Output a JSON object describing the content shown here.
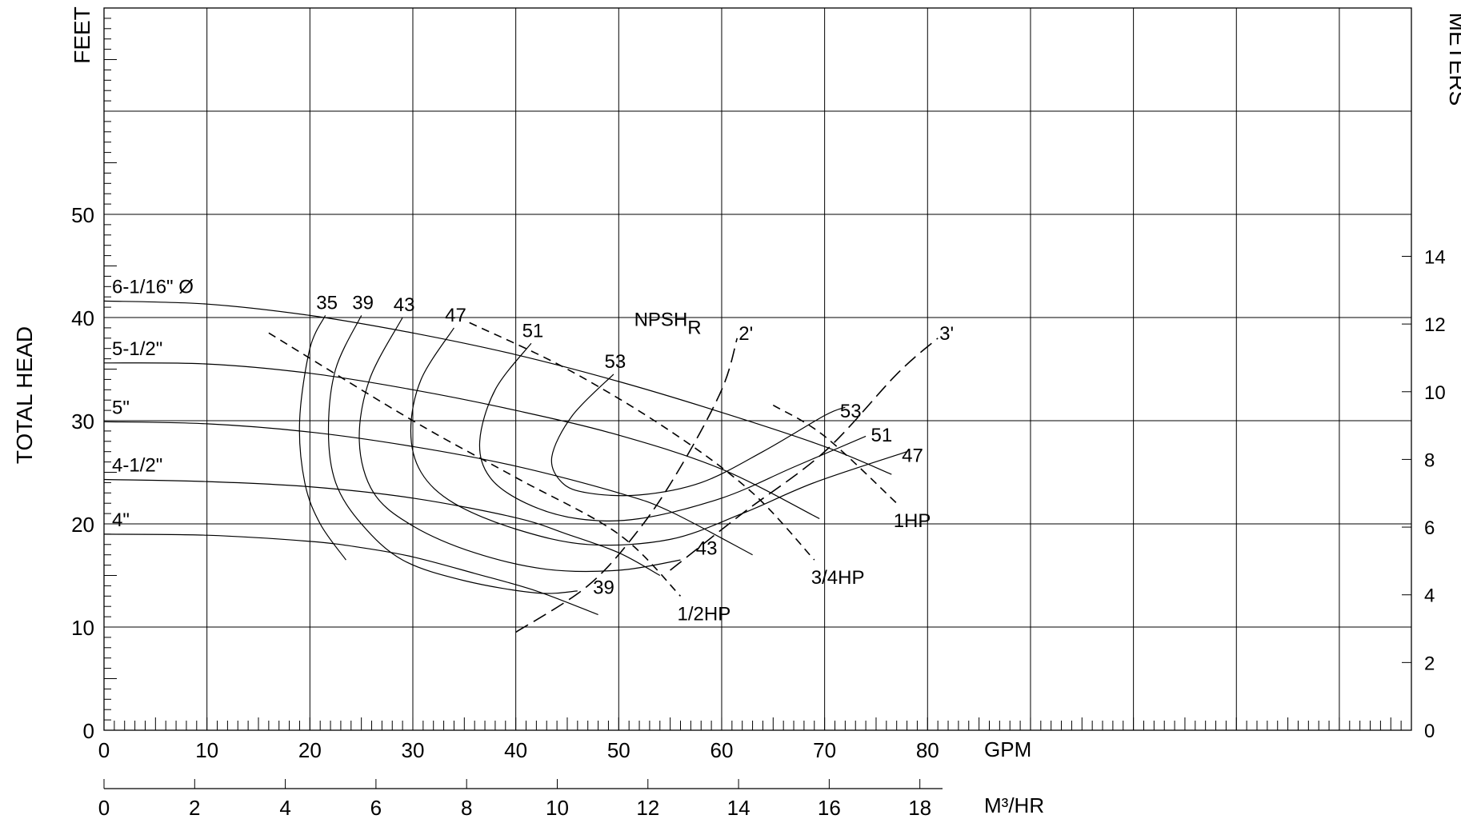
{
  "chart_data": {
    "type": "line",
    "title": "",
    "axes": {
      "left_unit": "FEET",
      "left_title": "TOTAL HEAD",
      "right_unit": "METERS",
      "bottom_unit": "GPM",
      "bottom2_unit": "M³/HR",
      "x_range": [
        0,
        127
      ],
      "y_range": [
        0,
        70
      ],
      "y_ticks": [
        "0",
        "10",
        "20",
        "30",
        "40",
        "50"
      ],
      "x_ticks": [
        "0",
        "10",
        "20",
        "30",
        "40",
        "50",
        "60",
        "70",
        "80"
      ],
      "x2_ticks": [
        "0",
        "2",
        "4",
        "6",
        "8",
        "10",
        "12",
        "14",
        "16",
        "18"
      ],
      "y2_ticks": [
        "0",
        "2",
        "4",
        "6",
        "8",
        "10",
        "12",
        "14"
      ],
      "grid": true
    },
    "impeller_curves": [
      {
        "label": "6-1/16\" Ø",
        "points": [
          [
            0,
            41.6
          ],
          [
            10,
            41.3
          ],
          [
            20,
            40.2
          ],
          [
            30,
            38.5
          ],
          [
            40,
            36.4
          ],
          [
            50,
            33.8
          ],
          [
            60,
            30.8
          ],
          [
            70,
            27.5
          ],
          [
            76.5,
            24.8
          ]
        ]
      },
      {
        "label": "5-1/2\"",
        "points": [
          [
            0,
            35.6
          ],
          [
            10,
            35.5
          ],
          [
            20,
            34.6
          ],
          [
            30,
            33.0
          ],
          [
            40,
            31.0
          ],
          [
            50,
            28.6
          ],
          [
            60,
            25.3
          ],
          [
            69.5,
            20.5
          ]
        ]
      },
      {
        "label": "5\"",
        "points": [
          [
            0,
            29.9
          ],
          [
            10,
            29.7
          ],
          [
            20,
            28.9
          ],
          [
            30,
            27.5
          ],
          [
            40,
            25.6
          ],
          [
            50,
            23.0
          ],
          [
            55,
            21.2
          ],
          [
            63,
            17.0
          ]
        ]
      },
      {
        "label": "4-1/2\"",
        "points": [
          [
            0,
            24.3
          ],
          [
            10,
            24.1
          ],
          [
            20,
            23.6
          ],
          [
            30,
            22.5
          ],
          [
            40,
            20.6
          ],
          [
            45,
            19.0
          ],
          [
            50,
            17.2
          ],
          [
            54,
            15.0
          ]
        ]
      },
      {
        "label": "4\"",
        "points": [
          [
            0,
            19.0
          ],
          [
            10,
            18.9
          ],
          [
            20,
            18.3
          ],
          [
            25,
            17.7
          ],
          [
            30,
            16.8
          ],
          [
            36,
            15.2
          ],
          [
            42,
            13.5
          ],
          [
            48,
            11.2
          ]
        ]
      }
    ],
    "efficiency_curves": [
      {
        "label": "35",
        "points": [
          [
            21.5,
            40.2
          ],
          [
            20,
            37.0
          ],
          [
            19,
            30.0
          ],
          [
            19.5,
            24.0
          ],
          [
            21,
            20.0
          ],
          [
            23.5,
            16.5
          ]
        ]
      },
      {
        "label": "39",
        "points": [
          [
            25,
            40.2
          ],
          [
            22.5,
            35.0
          ],
          [
            21.8,
            29.0
          ],
          [
            22.5,
            24.0
          ],
          [
            25,
            20.0
          ],
          [
            29,
            16.5
          ],
          [
            35,
            14.5
          ],
          [
            42,
            13.3
          ],
          [
            46,
            13.5
          ]
        ]
      },
      {
        "label": "43",
        "points": [
          [
            29,
            40.0
          ],
          [
            25.8,
            34.0
          ],
          [
            24.8,
            28.0
          ],
          [
            26.2,
            23.0
          ],
          [
            30,
            19.8
          ],
          [
            36,
            17.2
          ],
          [
            43,
            15.6
          ],
          [
            50,
            15.5
          ],
          [
            56,
            16.5
          ]
        ]
      },
      {
        "label": "47",
        "points": [
          [
            34,
            39.0
          ],
          [
            30.8,
            34.0
          ],
          [
            29.8,
            29.0
          ],
          [
            30.8,
            25.0
          ],
          [
            34,
            22.0
          ],
          [
            40,
            19.5
          ],
          [
            47,
            18.0
          ],
          [
            55,
            18.5
          ],
          [
            62,
            21.0
          ],
          [
            69,
            24.0
          ],
          [
            78,
            27.0
          ]
        ]
      },
      {
        "label": "51",
        "points": [
          [
            41.5,
            37.5
          ],
          [
            38,
            33.0
          ],
          [
            36.5,
            28.0
          ],
          [
            37.5,
            24.5
          ],
          [
            41,
            22.0
          ],
          [
            46,
            20.5
          ],
          [
            52,
            20.5
          ],
          [
            60,
            22.5
          ],
          [
            67,
            25.5
          ],
          [
            74,
            28.5
          ]
        ]
      },
      {
        "label": "53",
        "points": [
          [
            49.5,
            34.5
          ],
          [
            45.5,
            30.5
          ],
          [
            43.5,
            26.5
          ],
          [
            44.5,
            24.0
          ],
          [
            47,
            23.0
          ],
          [
            52,
            22.8
          ],
          [
            58,
            24.0
          ],
          [
            64,
            27.0
          ],
          [
            70,
            30.5
          ],
          [
            72,
            31.3
          ]
        ]
      }
    ],
    "hp_curves": [
      {
        "label": "1/2HP",
        "points": [
          [
            16,
            38.5
          ],
          [
            30,
            30.0
          ],
          [
            40,
            24.5
          ],
          [
            50,
            19.0
          ],
          [
            56,
            13.0
          ]
        ]
      },
      {
        "label": "3/4HP",
        "points": [
          [
            35.5,
            39.5
          ],
          [
            45,
            35.0
          ],
          [
            55,
            29.0
          ],
          [
            63,
            23.0
          ],
          [
            69,
            16.5
          ]
        ]
      },
      {
        "label": "1HP",
        "points": [
          [
            65,
            31.5
          ],
          [
            70,
            28.5
          ],
          [
            77,
            22.0
          ]
        ]
      }
    ],
    "npsh_curves": [
      {
        "label": "2'",
        "points": [
          [
            40,
            9.5
          ],
          [
            47,
            14.0
          ],
          [
            52,
            19.5
          ],
          [
            56,
            25.5
          ],
          [
            60,
            33.0
          ],
          [
            61.5,
            38.0
          ]
        ]
      },
      {
        "label": "3'",
        "points": [
          [
            55,
            15.5
          ],
          [
            62,
            21.0
          ],
          [
            70,
            27.0
          ],
          [
            77,
            34.5
          ],
          [
            81,
            38.0
          ]
        ]
      }
    ],
    "npsh_label": {
      "main": "NPSH",
      "sub": "R"
    },
    "end_labels": [
      {
        "text": "53",
        "x": 71.5,
        "y": 30.3
      },
      {
        "text": "51",
        "x": 74.5,
        "y": 28.0
      },
      {
        "text": "47",
        "x": 77.5,
        "y": 26.0
      },
      {
        "text": "43",
        "x": 57.5,
        "y": 17.0
      },
      {
        "text": "39",
        "x": 47.5,
        "y": 13.2
      }
    ]
  }
}
